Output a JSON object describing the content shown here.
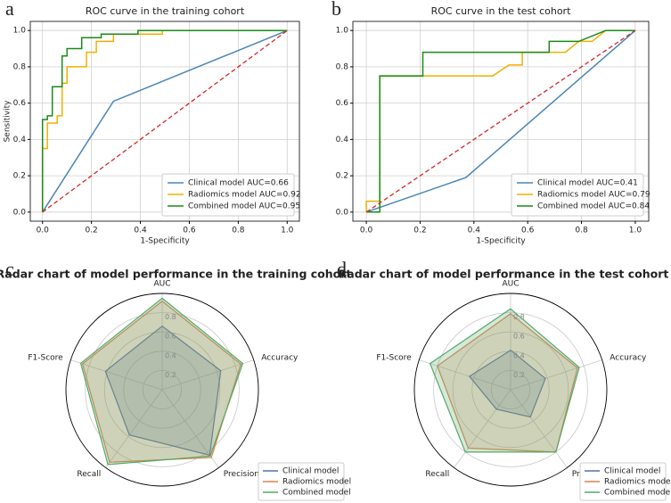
{
  "chart_data": [
    {
      "type": "line",
      "panel_label": "a",
      "title": "ROC curve in the training cohort",
      "xlabel": "1-Specificity",
      "ylabel": "Sensitivity",
      "xlim": [
        -0.05,
        1.05
      ],
      "ylim": [
        -0.05,
        1.05
      ],
      "xticks": [
        {
          "value": 0,
          "label": "0.0"
        },
        0.2,
        0.4,
        0.6,
        0.8,
        {
          "value": 1,
          "label": "1.0"
        }
      ],
      "yticks": [
        {
          "value": 0,
          "label": "0.0"
        },
        0.2,
        0.4,
        0.6,
        0.8,
        {
          "value": 1,
          "label": "1.0"
        }
      ],
      "grid": true,
      "legend": "lower right",
      "reference_line": {
        "x": [
          0,
          1
        ],
        "values": [
          0,
          1
        ],
        "color": "#d62728",
        "style": "dashed"
      },
      "series": [
        {
          "name": "Clinical model AUC=0.66",
          "color": "#4a86b8",
          "x": [
            0,
            0.29,
            1
          ],
          "values": [
            0,
            0.61,
            1
          ]
        },
        {
          "name": "Radiomics model AUC=0.92",
          "color": "#f0b000",
          "x": [
            0,
            0,
            0.02,
            0.02,
            0.06,
            0.06,
            0.08,
            0.08,
            0.1,
            0.1,
            0.18,
            0.18,
            0.22,
            0.22,
            0.29,
            0.29,
            0.49,
            0.49,
            1
          ],
          "values": [
            0,
            0.35,
            0.35,
            0.49,
            0.49,
            0.53,
            0.53,
            0.71,
            0.71,
            0.8,
            0.8,
            0.88,
            0.88,
            0.94,
            0.94,
            0.98,
            0.98,
            1,
            1
          ]
        },
        {
          "name": "Combined model AUC=0.95",
          "color": "#1a8a1a",
          "x": [
            0,
            0,
            0.02,
            0.02,
            0.04,
            0.04,
            0.08,
            0.08,
            0.1,
            0.1,
            0.16,
            0.16,
            0.24,
            0.24,
            0.39,
            0.39,
            1
          ],
          "values": [
            0,
            0.51,
            0.51,
            0.53,
            0.53,
            0.69,
            0.69,
            0.86,
            0.86,
            0.9,
            0.9,
            0.96,
            0.96,
            0.98,
            0.98,
            1,
            1
          ]
        }
      ]
    },
    {
      "type": "line",
      "panel_label": "b",
      "title": "ROC curve in the test cohort",
      "xlabel": "1-Specificity",
      "xlim": [
        -0.05,
        1.05
      ],
      "ylim": [
        -0.05,
        1.05
      ],
      "xticks": [
        {
          "value": 0,
          "label": "0.0"
        },
        0.2,
        0.4,
        0.6,
        0.8,
        {
          "value": 1,
          "label": "1.0"
        }
      ],
      "yticks": [
        {
          "value": 0,
          "label": "0.0"
        },
        0.2,
        0.4,
        0.6,
        0.8,
        {
          "value": 1,
          "label": "1.0"
        }
      ],
      "grid": true,
      "legend": "lower right",
      "reference_line": {
        "x": [
          0,
          1
        ],
        "values": [
          0,
          1
        ],
        "color": "#d62728",
        "style": "dashed"
      },
      "series": [
        {
          "name": "Clinical model AUC=0.41",
          "color": "#4a86b8",
          "x": [
            0,
            0.37,
            1
          ],
          "values": [
            0,
            0.19,
            1
          ]
        },
        {
          "name": "Radiomics model AUC=0.79",
          "color": "#f0b000",
          "x": [
            0,
            0,
            0.05,
            0.05,
            0.47,
            0.53,
            0.58,
            0.58,
            0.74,
            0.79,
            0.84,
            0.89,
            1
          ],
          "values": [
            0,
            0.06,
            0.06,
            0.75,
            0.75,
            0.81,
            0.81,
            0.88,
            0.88,
            0.94,
            0.94,
            1,
            1
          ]
        },
        {
          "name": "Combined model AUC=0.84",
          "color": "#1a8a1a",
          "x": [
            0,
            0.05,
            0.05,
            0.21,
            0.21,
            0.68,
            0.68,
            0.79,
            0.89,
            1
          ],
          "values": [
            0,
            0,
            0.75,
            0.75,
            0.88,
            0.88,
            0.94,
            0.94,
            1,
            1
          ]
        }
      ]
    },
    {
      "type": "radar",
      "panel_label": "c",
      "title": "Radar chart of model performance in the training cohort",
      "categories": [
        "AUC",
        "Accuracy",
        "Precision",
        "Recall",
        "F1-Score"
      ],
      "rlim": [
        0,
        1
      ],
      "rticks": [
        0.2,
        0.4,
        0.6,
        0.8
      ],
      "legend": "lower right",
      "series": [
        {
          "name": "Clinical model",
          "color": "#4c72b0",
          "values": [
            0.66,
            0.64,
            0.84,
            0.58,
            0.62
          ]
        },
        {
          "name": "Radiomics model",
          "color": "#dd8452",
          "values": [
            0.92,
            0.86,
            0.87,
            0.93,
            0.87
          ]
        },
        {
          "name": "Combined model",
          "color": "#55a868",
          "values": [
            0.95,
            0.88,
            0.85,
            0.96,
            0.89
          ]
        }
      ]
    },
    {
      "type": "radar",
      "panel_label": "d",
      "title": "Radar chart of model performance in the test cohort",
      "categories": [
        "AUC",
        "Accuracy",
        "Precision",
        "Recall",
        "F1-Score"
      ],
      "rlim": [
        0,
        1
      ],
      "rticks": [
        0.2,
        0.4,
        0.6,
        0.8
      ],
      "legend": "lower right",
      "series": [
        {
          "name": "Clinical model",
          "color": "#4c72b0",
          "values": [
            0.41,
            0.38,
            0.35,
            0.25,
            0.45
          ]
        },
        {
          "name": "Radiomics model",
          "color": "#dd8452",
          "values": [
            0.79,
            0.73,
            0.8,
            0.75,
            0.8
          ]
        },
        {
          "name": "Combined model",
          "color": "#55a868",
          "values": [
            0.84,
            0.75,
            0.8,
            0.8,
            0.88
          ]
        }
      ]
    }
  ]
}
